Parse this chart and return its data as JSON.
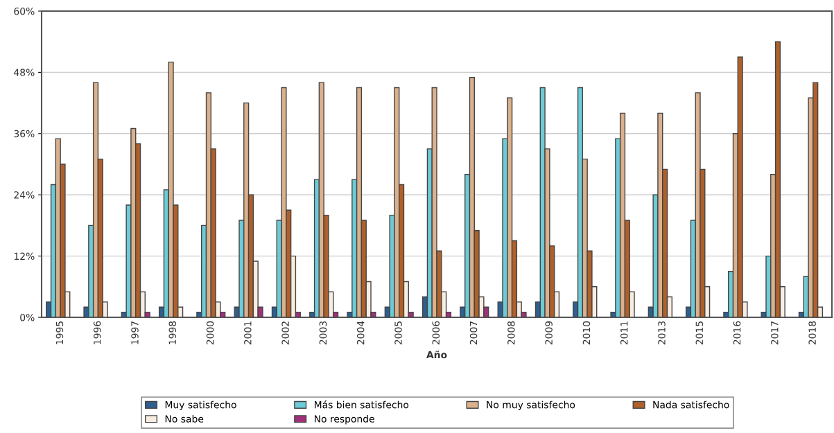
{
  "chart_data": {
    "type": "bar",
    "xlabel": "Año",
    "categories": [
      "1995",
      "1996",
      "1997",
      "1998",
      "2000",
      "2001",
      "2002",
      "2003",
      "2004",
      "2005",
      "2006",
      "2007",
      "2008",
      "2009",
      "2010",
      "2011",
      "2013",
      "2015",
      "2016",
      "2017",
      "2018"
    ],
    "series": [
      {
        "name": "Muy satisfecho",
        "color": "#2e5f8f",
        "values": [
          3,
          2,
          1,
          2,
          1,
          2,
          2,
          1,
          1,
          2,
          4,
          2,
          3,
          3,
          3,
          1,
          2,
          2,
          1,
          1,
          1
        ]
      },
      {
        "name": "Más bien satisfecho",
        "color": "#6ccbd6",
        "values": [
          26,
          18,
          22,
          25,
          18,
          19,
          19,
          27,
          27,
          20,
          33,
          28,
          35,
          45,
          45,
          35,
          24,
          19,
          9,
          12,
          8
        ]
      },
      {
        "name": "No muy satisfecho",
        "color": "#dbb08c",
        "values": [
          35,
          46,
          37,
          50,
          44,
          42,
          45,
          46,
          45,
          45,
          45,
          47,
          43,
          33,
          31,
          40,
          40,
          44,
          36,
          28,
          43
        ]
      },
      {
        "name": "Nada satisfecho",
        "color": "#b0602a",
        "values": [
          30,
          31,
          34,
          22,
          33,
          24,
          21,
          20,
          19,
          26,
          13,
          17,
          15,
          14,
          13,
          19,
          29,
          29,
          51,
          54,
          46
        ]
      },
      {
        "name": "No sabe",
        "color": "#f7ede2",
        "values": [
          5,
          3,
          5,
          2,
          3,
          11,
          12,
          5,
          7,
          7,
          5,
          4,
          3,
          5,
          6,
          5,
          4,
          6,
          3,
          6,
          2
        ]
      },
      {
        "name": "No responde",
        "color": "#a0307a",
        "values": [
          null,
          null,
          1,
          null,
          1,
          2,
          1,
          1,
          1,
          1,
          1,
          2,
          1,
          null,
          null,
          null,
          null,
          null,
          null,
          null,
          null
        ]
      }
    ],
    "ylim": [
      0,
      60
    ],
    "yticks": [
      {
        "value": 0,
        "label": "0%"
      },
      {
        "value": 12,
        "label": "12%"
      },
      {
        "value": 24,
        "label": "24%"
      },
      {
        "value": 36,
        "label": "36%"
      },
      {
        "value": 48,
        "label": "48%"
      },
      {
        "value": 60,
        "label": "60%"
      }
    ],
    "grid": "y",
    "legend": "bottom"
  }
}
